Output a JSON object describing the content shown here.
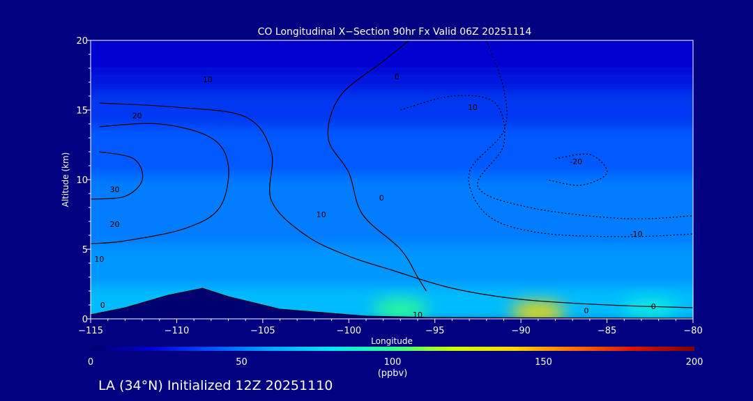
{
  "chart_data": {
    "type": "heatmap",
    "title": "CO Longitudinal X−Section 90hr  Fx Valid 06Z 20251114",
    "xlabel": "Longitude",
    "ylabel": "Altitude (km)",
    "xlim": [
      -115,
      -80
    ],
    "ylim": [
      0,
      20
    ],
    "x_ticks": [
      -115,
      -110,
      -105,
      -100,
      -95,
      -90,
      -85,
      -80
    ],
    "x_tick_labels": [
      "−115",
      "−110",
      "−105",
      "−100",
      "−95",
      "−90",
      "−85",
      "−80"
    ],
    "y_ticks": [
      0,
      5,
      10,
      15,
      20
    ],
    "y_tick_labels": [
      "0",
      "5",
      "10",
      "15",
      "20"
    ],
    "colorbar": {
      "min": 0,
      "max": 200,
      "ticks": [
        0,
        50,
        100,
        150,
        200
      ],
      "tick_labels": [
        "0",
        "50",
        "100",
        "150",
        "200"
      ],
      "unit": "(ppbv)",
      "colors": [
        "#00006e",
        "#0000d0",
        "#0050ff",
        "#00a8ff",
        "#00e8f8",
        "#30ff90",
        "#c8ff00",
        "#ffd800",
        "#ff7000",
        "#e01000",
        "#800000"
      ]
    },
    "field_bands": [
      {
        "alt_km": [
          17.5,
          20
        ],
        "co_ppbv": 20
      },
      {
        "alt_km": [
          16,
          17.5
        ],
        "co_ppbv": 26
      },
      {
        "alt_km": [
          13.5,
          16
        ],
        "co_ppbv": 34
      },
      {
        "alt_km": [
          10,
          13.5
        ],
        "co_ppbv": 42
      },
      {
        "alt_km": [
          5,
          10
        ],
        "co_ppbv": 50
      },
      {
        "alt_km": [
          2,
          5
        ],
        "co_ppbv": 56
      },
      {
        "alt_km": [
          0,
          2
        ],
        "co_ppbv": 66
      }
    ],
    "hotspots": [
      {
        "lon": -89,
        "alt_km": 0.5,
        "co_ppbv": 140
      },
      {
        "lon": -97,
        "alt_km": 0.7,
        "co_ppbv": 100
      },
      {
        "lon": -82.5,
        "alt_km": 0.8,
        "co_ppbv": 85
      }
    ],
    "terrain": [
      [
        -115,
        0.3
      ],
      [
        -113,
        0.8
      ],
      [
        -110.5,
        1.7
      ],
      [
        -108.5,
        2.2
      ],
      [
        -107,
        1.6
      ],
      [
        -104,
        0.7
      ],
      [
        -101,
        0.4
      ],
      [
        -99,
        0.2
      ],
      [
        -95,
        0.1
      ],
      [
        -80,
        0.05
      ]
    ],
    "contours": [
      {
        "label": "0",
        "dashed": false,
        "points": [
          [
            -96.5,
            20
          ],
          [
            -98,
            18.5
          ],
          [
            -100.5,
            16
          ],
          [
            -101.2,
            13
          ],
          [
            -100,
            10.5
          ],
          [
            -99.2,
            7.5
          ],
          [
            -97,
            5
          ],
          [
            -96,
            3
          ],
          [
            -95.5,
            2
          ]
        ]
      },
      {
        "label": "10",
        "dashed": false,
        "points": [
          [
            -114.5,
            15.5
          ],
          [
            -110,
            15.2
          ],
          [
            -106,
            14.5
          ],
          [
            -104.5,
            12
          ],
          [
            -104.5,
            8.5
          ],
          [
            -102.5,
            6
          ],
          [
            -100,
            4.5
          ],
          [
            -97.5,
            3.5
          ],
          [
            -94,
            2.2
          ],
          [
            -90,
            1.4
          ],
          [
            -85,
            1
          ],
          [
            -80,
            0.8
          ]
        ]
      },
      {
        "label": "20",
        "dashed": false,
        "points": [
          [
            -114.5,
            13.8
          ],
          [
            -111,
            14
          ],
          [
            -108,
            13
          ],
          [
            -107,
            11
          ],
          [
            -107.5,
            8
          ],
          [
            -109.5,
            6.5
          ],
          [
            -113,
            5.6
          ],
          [
            -115,
            5.4
          ]
        ]
      },
      {
        "label": "30",
        "dashed": false,
        "points": [
          [
            -114.5,
            12
          ],
          [
            -112.5,
            11.5
          ],
          [
            -112,
            10
          ],
          [
            -113,
            8.8
          ],
          [
            -115,
            8.6
          ]
        ]
      },
      {
        "label": "10",
        "dashed": true,
        "points": [
          [
            -92,
            20
          ],
          [
            -91,
            16.5
          ],
          [
            -91,
            13.5
          ],
          [
            -93,
            10.5
          ],
          [
            -92,
            7.5
          ],
          [
            -89,
            6.2
          ],
          [
            -84,
            5.9
          ],
          [
            -80,
            6.1
          ]
        ]
      },
      {
        "label": "-10",
        "dashed": true,
        "points": [
          [
            -97,
            15
          ],
          [
            -94,
            16
          ],
          [
            -91.5,
            15.5
          ],
          [
            -91,
            12.5
          ],
          [
            -92.5,
            9.5
          ],
          [
            -89.5,
            8
          ],
          [
            -84,
            7.2
          ],
          [
            -80,
            7.4
          ]
        ]
      },
      {
        "label": "-20",
        "dashed": true,
        "points": [
          [
            -88,
            11.5
          ],
          [
            -86,
            11.8
          ],
          [
            -85,
            10.5
          ],
          [
            -86.5,
            9.6
          ],
          [
            -88.5,
            10
          ]
        ]
      }
    ],
    "contour_labels": [
      {
        "text": "10",
        "lon": -108.2,
        "alt": 17
      },
      {
        "text": "20",
        "lon": -112.3,
        "alt": 14.4
      },
      {
        "text": "30",
        "lon": -113.6,
        "alt": 9.1
      },
      {
        "text": "20",
        "lon": -113.6,
        "alt": 6.6
      },
      {
        "text": "10",
        "lon": -114.5,
        "alt": 4.1
      },
      {
        "text": "0",
        "lon": -114.3,
        "alt": 0.8
      },
      {
        "text": "0",
        "lon": -97.2,
        "alt": 17.2
      },
      {
        "text": "0",
        "lon": -98.1,
        "alt": 8.5
      },
      {
        "text": "10",
        "lon": -101.6,
        "alt": 7.3
      },
      {
        "text": "10",
        "lon": -92.8,
        "alt": 15
      },
      {
        "text": "-20",
        "lon": -86.8,
        "alt": 11.1
      },
      {
        "text": "-10",
        "lon": -83.3,
        "alt": 5.9
      },
      {
        "text": "10",
        "lon": -96,
        "alt": 0.1
      },
      {
        "text": "0",
        "lon": -86.2,
        "alt": 0.4
      },
      {
        "text": "0",
        "lon": -82.3,
        "alt": 0.7
      }
    ]
  },
  "footer": {
    "caption": "LA (34°N) Initialized 12Z 20251110"
  }
}
